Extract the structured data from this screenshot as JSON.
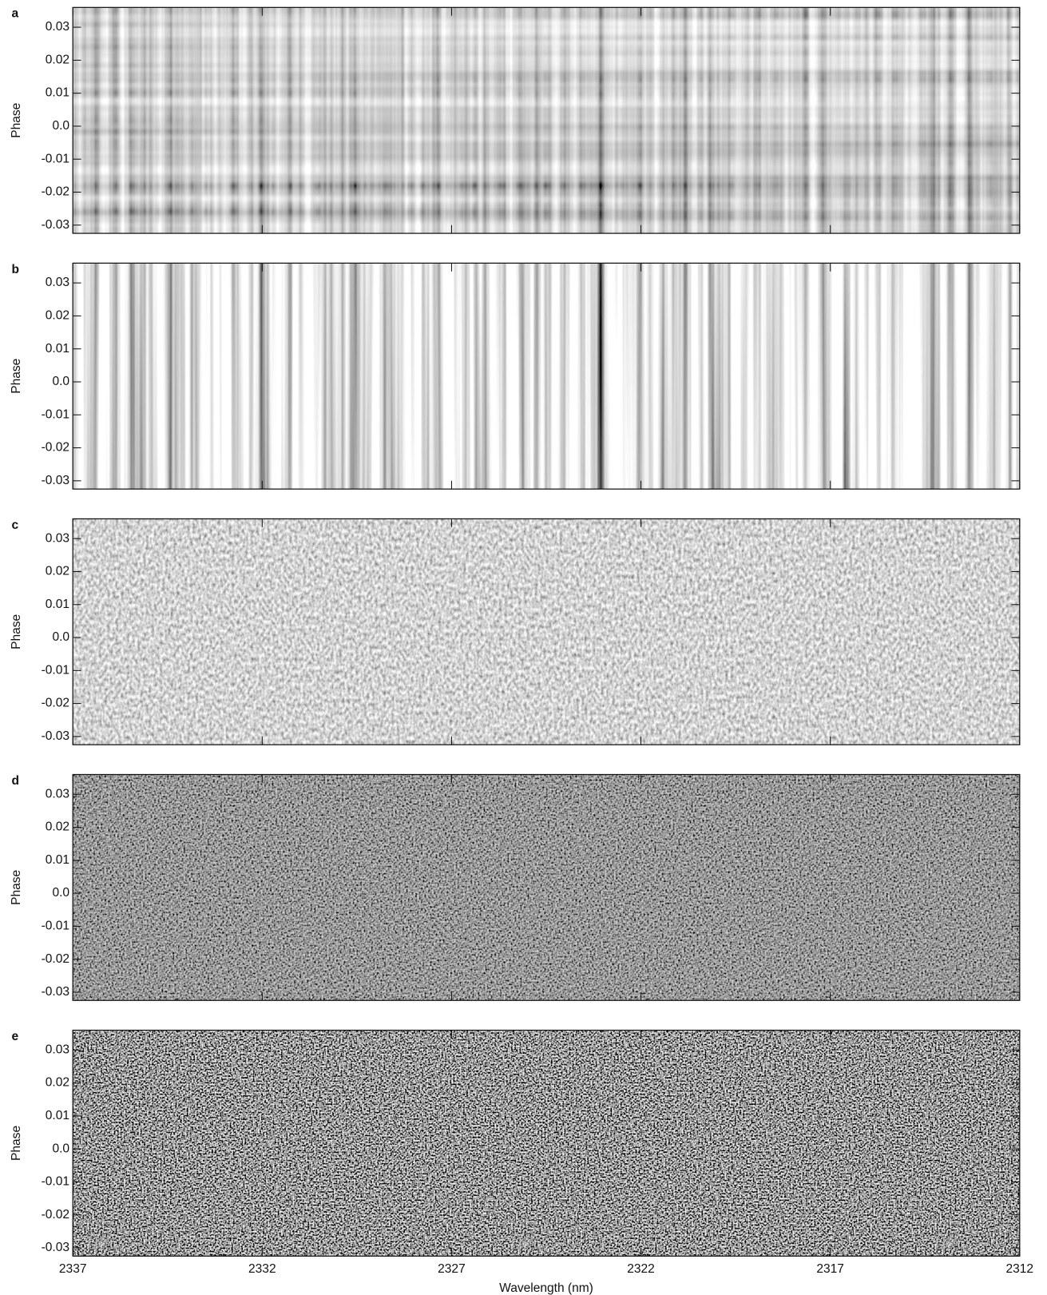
{
  "chart_data": [
    {
      "type": "image",
      "panel": "a",
      "ylabel": "Phase",
      "ylim": [
        -0.0325,
        0.036
      ],
      "yticks": [
        0.03,
        0.02,
        0.01,
        {
          "value": 0,
          "label": "0.0"
        },
        -0.01,
        -0.02,
        -0.03
      ],
      "xlim": [
        2337,
        2312
      ]
    },
    {
      "type": "image",
      "panel": "b",
      "ylabel": "Phase",
      "ylim": [
        -0.0325,
        0.036
      ],
      "yticks": [
        0.03,
        0.02,
        0.01,
        {
          "value": 0,
          "label": "0.0"
        },
        -0.01,
        -0.02,
        -0.03
      ],
      "xlim": [
        2337,
        2312
      ]
    },
    {
      "type": "image",
      "panel": "c",
      "ylabel": "Phase",
      "ylim": [
        -0.0325,
        0.036
      ],
      "yticks": [
        0.03,
        0.02,
        0.01,
        {
          "value": 0,
          "label": "0.0"
        },
        -0.01,
        -0.02,
        -0.03
      ],
      "xlim": [
        2337,
        2312
      ]
    },
    {
      "type": "image",
      "panel": "d",
      "ylabel": "Phase",
      "ylim": [
        -0.0325,
        0.036
      ],
      "yticks": [
        0.03,
        0.02,
        0.01,
        {
          "value": 0,
          "label": "0.0"
        },
        -0.01,
        -0.02,
        -0.03
      ],
      "xlim": [
        2337,
        2312
      ]
    },
    {
      "type": "image",
      "panel": "e",
      "ylabel": "Phase",
      "ylim": [
        -0.0325,
        0.036
      ],
      "yticks": [
        0.03,
        0.02,
        0.01,
        {
          "value": 0,
          "label": "0.0"
        },
        -0.01,
        -0.02,
        -0.03
      ],
      "xlim": [
        2337,
        2312
      ],
      "xticks": [
        2337,
        2332,
        2327,
        2322,
        2317,
        2312
      ],
      "xlabel": "Wavelength (nm)"
    }
  ]
}
